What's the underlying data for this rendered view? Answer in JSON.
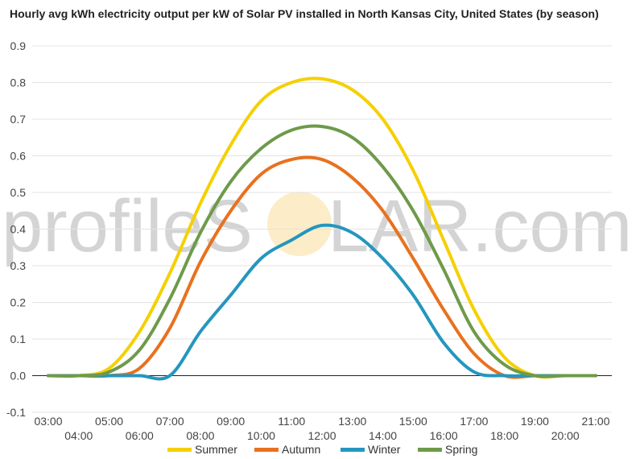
{
  "chart_data": {
    "type": "line",
    "title": "Hourly avg kWh electricity output per kW of Solar PV installed in North Kansas City, United States (by season)",
    "xlabel": "",
    "ylabel": "",
    "ylim": [
      -0.1,
      0.9
    ],
    "yticks": [
      "-0.1",
      "0.0",
      "0.1",
      "0.2",
      "0.3",
      "0.4",
      "0.5",
      "0.6",
      "0.7",
      "0.8",
      "0.9"
    ],
    "x": [
      "03:00",
      "04:00",
      "05:00",
      "06:00",
      "07:00",
      "08:00",
      "09:00",
      "10:00",
      "11:00",
      "12:00",
      "13:00",
      "14:00",
      "15:00",
      "16:00",
      "17:00",
      "18:00",
      "19:00",
      "20:00",
      "21:00"
    ],
    "grid": true,
    "legend": "bottom",
    "watermark": {
      "left": "profileS",
      "right": "LAR.com"
    },
    "series": [
      {
        "name": "Summer",
        "color": "#f5d000",
        "values": [
          0.0,
          0.0,
          0.02,
          0.12,
          0.28,
          0.47,
          0.63,
          0.75,
          0.8,
          0.81,
          0.78,
          0.7,
          0.56,
          0.37,
          0.18,
          0.05,
          0.0,
          0.0,
          0.0
        ]
      },
      {
        "name": "Autumn",
        "color": "#e8711f",
        "values": [
          0.0,
          0.0,
          0.0,
          0.02,
          0.13,
          0.31,
          0.45,
          0.55,
          0.59,
          0.59,
          0.54,
          0.45,
          0.32,
          0.18,
          0.06,
          0.0,
          0.0,
          0.0,
          0.0
        ]
      },
      {
        "name": "Winter",
        "color": "#2596be",
        "values": [
          0.0,
          0.0,
          0.0,
          0.0,
          0.0,
          0.12,
          0.22,
          0.32,
          0.37,
          0.41,
          0.39,
          0.32,
          0.22,
          0.09,
          0.01,
          0.0,
          0.0,
          0.0,
          0.0
        ]
      },
      {
        "name": "Spring",
        "color": "#6e9a4a",
        "values": [
          0.0,
          0.0,
          0.01,
          0.07,
          0.21,
          0.39,
          0.53,
          0.62,
          0.67,
          0.68,
          0.65,
          0.57,
          0.45,
          0.29,
          0.12,
          0.03,
          0.0,
          0.0,
          0.0
        ]
      }
    ]
  }
}
